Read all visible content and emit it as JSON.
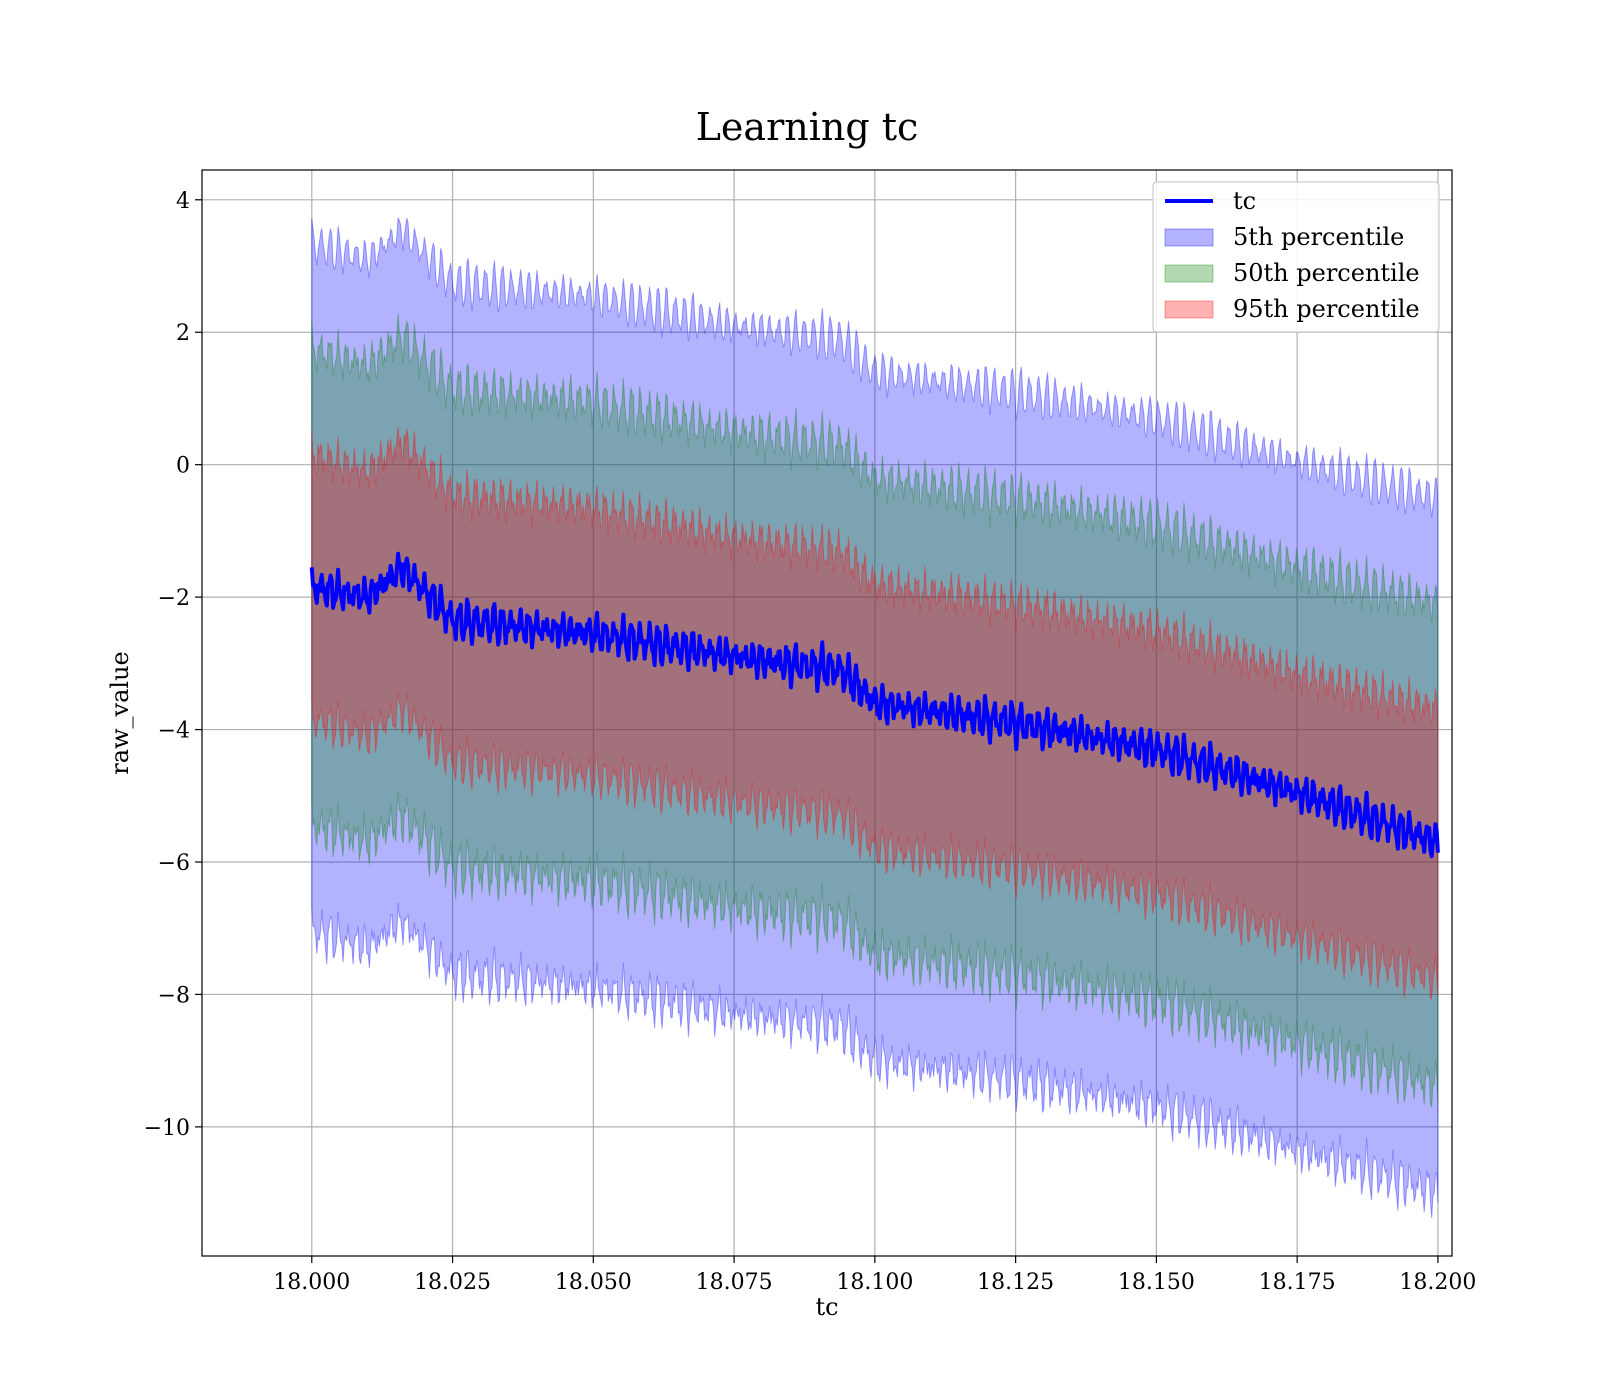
{
  "chart_data": {
    "type": "area",
    "title": "Learning tc",
    "xlabel": "tc",
    "ylabel": "raw_value",
    "xlim": [
      17.9805,
      18.2025
    ],
    "ylim": [
      -11.95,
      4.45
    ],
    "x_ticks": [
      18.0,
      18.025,
      18.05,
      18.075,
      18.1,
      18.125,
      18.15,
      18.175,
      18.2
    ],
    "x_tick_labels": [
      "18.000",
      "18.025",
      "18.050",
      "18.075",
      "18.100",
      "18.125",
      "18.150",
      "18.175",
      "18.200"
    ],
    "y_ticks": [
      4,
      2,
      0,
      -2,
      -4,
      -6,
      -8,
      -10
    ],
    "y_tick_labels": [
      "4",
      "2",
      "0",
      "−2",
      "−4",
      "−6",
      "−8",
      "−10"
    ],
    "grid": true,
    "legend_position": "top-right",
    "x": [
      18.0,
      18.01,
      18.016,
      18.025,
      18.05,
      18.075,
      18.094,
      18.1,
      18.125,
      18.15,
      18.175,
      18.2
    ],
    "series": [
      {
        "name": "tc",
        "kind": "line",
        "color": "#0000ff",
        "values": [
          -1.85,
          -2.0,
          -1.55,
          -2.35,
          -2.55,
          -2.9,
          -3.1,
          -3.6,
          -3.9,
          -4.3,
          -4.95,
          -5.7
        ]
      },
      {
        "name": "5th percentile",
        "kind": "band",
        "color": "#0000ff",
        "lower": [
          -7.05,
          -7.3,
          -6.9,
          -7.7,
          -7.9,
          -8.3,
          -8.5,
          -9.0,
          -9.3,
          -9.7,
          -10.35,
          -11.0
        ],
        "upper": [
          3.35,
          3.1,
          3.55,
          2.75,
          2.55,
          2.1,
          1.9,
          1.4,
          1.1,
          0.7,
          0.05,
          -0.5
        ]
      },
      {
        "name": "50th percentile",
        "kind": "band",
        "color": "#008000",
        "lower": [
          -5.45,
          -5.7,
          -5.3,
          -6.1,
          -6.3,
          -6.7,
          -6.9,
          -7.4,
          -7.7,
          -8.1,
          -8.75,
          -9.4
        ],
        "upper": [
          1.75,
          1.5,
          1.95,
          1.15,
          0.95,
          0.5,
          0.3,
          -0.2,
          -0.5,
          -0.9,
          -1.55,
          -2.1
        ]
      },
      {
        "name": "95th percentile",
        "kind": "band",
        "color": "#ff0000",
        "lower": [
          -3.85,
          -4.1,
          -3.7,
          -4.5,
          -4.7,
          -5.1,
          -5.3,
          -5.8,
          -6.1,
          -6.5,
          -7.15,
          -7.8
        ],
        "upper": [
          0.15,
          -0.1,
          0.35,
          -0.45,
          -0.65,
          -1.1,
          -1.3,
          -1.8,
          -2.1,
          -2.5,
          -3.15,
          -3.7
        ]
      }
    ]
  }
}
